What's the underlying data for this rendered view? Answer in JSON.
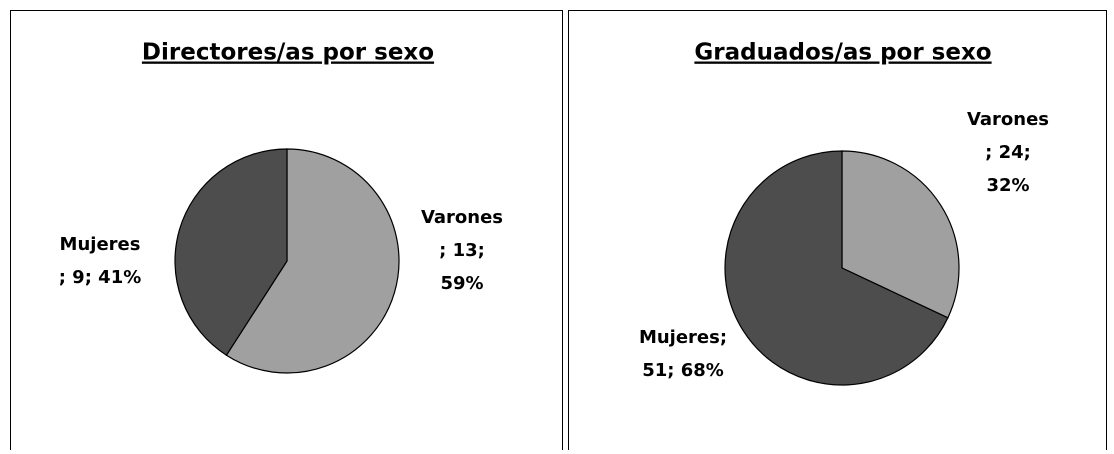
{
  "chart_data": [
    {
      "type": "pie",
      "title": "Directores/as por sexo",
      "values": [
        13,
        9
      ],
      "colors": [
        "#a0a0a0",
        "#4d4d4d"
      ],
      "data_labels": [
        [
          "Varones",
          "; 13;",
          "59%"
        ],
        [
          "Mujeres",
          "; 9; 41%"
        ]
      ]
    },
    {
      "type": "pie",
      "title": "Graduados/as por sexo",
      "values": [
        24,
        51
      ],
      "colors": [
        "#a0a0a0",
        "#4d4d4d"
      ],
      "data_labels": [
        [
          "Varones",
          "; 24;",
          "32%"
        ],
        [
          "Mujeres;",
          "51; 68%"
        ]
      ]
    }
  ]
}
